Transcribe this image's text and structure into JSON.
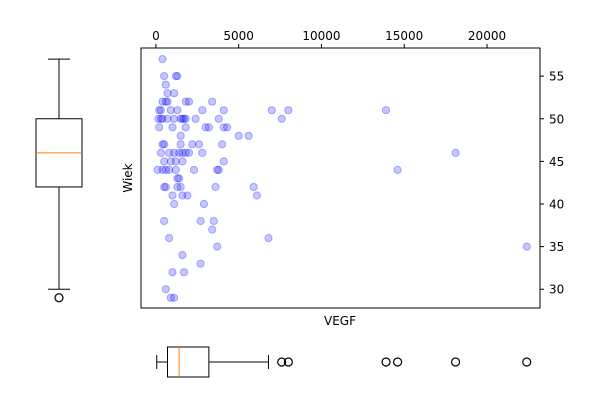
{
  "chart_data": [
    {
      "type": "scatter",
      "title": "",
      "xlabel": "VEGF",
      "ylabel": "Wiek",
      "xlim": [
        -900,
        23200
      ],
      "ylim": [
        27.8,
        58.3
      ],
      "x_ticks": [
        0,
        5000,
        10000,
        15000,
        20000
      ],
      "y_ticks": [
        30,
        35,
        40,
        45,
        50,
        55
      ],
      "x_axis_position": "top",
      "y_axis_position": "right",
      "grid": false,
      "point_color": "#0000ff",
      "points": [
        [
          400,
          57
        ],
        [
          500,
          55
        ],
        [
          1200,
          55
        ],
        [
          1300,
          55
        ],
        [
          600,
          54
        ],
        [
          1100,
          53
        ],
        [
          700,
          53
        ],
        [
          400,
          52
        ],
        [
          600,
          52
        ],
        [
          700,
          52
        ],
        [
          1800,
          52
        ],
        [
          2000,
          52
        ],
        [
          3400,
          52
        ],
        [
          200,
          51
        ],
        [
          300,
          51
        ],
        [
          900,
          51
        ],
        [
          1300,
          51
        ],
        [
          2800,
          51
        ],
        [
          4100,
          51
        ],
        [
          7000,
          51
        ],
        [
          8000,
          51
        ],
        [
          13900,
          51
        ],
        [
          150,
          50
        ],
        [
          300,
          50
        ],
        [
          400,
          50
        ],
        [
          700,
          50
        ],
        [
          1100,
          50
        ],
        [
          1500,
          50
        ],
        [
          1600,
          50
        ],
        [
          1700,
          50
        ],
        [
          1800,
          50
        ],
        [
          2400,
          50
        ],
        [
          3800,
          50
        ],
        [
          7600,
          50
        ],
        [
          200,
          49
        ],
        [
          1000,
          49
        ],
        [
          1800,
          49
        ],
        [
          3000,
          49
        ],
        [
          3200,
          49
        ],
        [
          4100,
          49
        ],
        [
          4300,
          49
        ],
        [
          1500,
          48
        ],
        [
          5000,
          48
        ],
        [
          5600,
          48
        ],
        [
          400,
          47
        ],
        [
          500,
          47
        ],
        [
          1500,
          47
        ],
        [
          2200,
          47
        ],
        [
          2600,
          47
        ],
        [
          4000,
          47
        ],
        [
          300,
          46
        ],
        [
          800,
          46
        ],
        [
          1100,
          46
        ],
        [
          1400,
          46
        ],
        [
          1600,
          46
        ],
        [
          1800,
          46
        ],
        [
          2000,
          46
        ],
        [
          2800,
          46
        ],
        [
          18100,
          46
        ],
        [
          500,
          45
        ],
        [
          900,
          45
        ],
        [
          1200,
          45
        ],
        [
          1600,
          45
        ],
        [
          4100,
          45
        ],
        [
          100,
          44
        ],
        [
          400,
          44
        ],
        [
          600,
          44
        ],
        [
          800,
          44
        ],
        [
          1200,
          44
        ],
        [
          2300,
          44
        ],
        [
          3700,
          44
        ],
        [
          3800,
          44
        ],
        [
          14600,
          44
        ],
        [
          1300,
          43
        ],
        [
          1400,
          43
        ],
        [
          500,
          42
        ],
        [
          600,
          42
        ],
        [
          1300,
          42
        ],
        [
          1500,
          42
        ],
        [
          3600,
          42
        ],
        [
          5900,
          42
        ],
        [
          1000,
          41
        ],
        [
          1600,
          41
        ],
        [
          1900,
          41
        ],
        [
          6100,
          41
        ],
        [
          1100,
          40
        ],
        [
          2900,
          40
        ],
        [
          500,
          38
        ],
        [
          2700,
          38
        ],
        [
          3500,
          38
        ],
        [
          3400,
          37
        ],
        [
          800,
          36
        ],
        [
          6800,
          36
        ],
        [
          3700,
          35
        ],
        [
          22400,
          35
        ],
        [
          1600,
          34
        ],
        [
          2700,
          33
        ],
        [
          1000,
          32
        ],
        [
          1700,
          32
        ],
        [
          600,
          30
        ],
        [
          900,
          29
        ],
        [
          1100,
          29
        ]
      ]
    },
    {
      "type": "boxplot",
      "orientation": "vertical",
      "variable": "Wiek",
      "placement": "left",
      "whisker_low": 30,
      "q1": 42,
      "median": 46,
      "q3": 50,
      "whisker_high": 57,
      "outliers": [
        29
      ],
      "ylim": [
        27.8,
        58.3
      ],
      "median_color": "#ff7f0e"
    },
    {
      "type": "boxplot",
      "orientation": "horizontal",
      "variable": "VEGF",
      "placement": "bottom",
      "whisker_low": 50,
      "q1": 700,
      "median": 1400,
      "q3": 3200,
      "whisker_high": 6800,
      "outliers": [
        7600,
        8000,
        13900,
        14600,
        18100,
        22400
      ],
      "xlim": [
        -900,
        23200
      ],
      "median_color": "#ff7f0e"
    }
  ]
}
